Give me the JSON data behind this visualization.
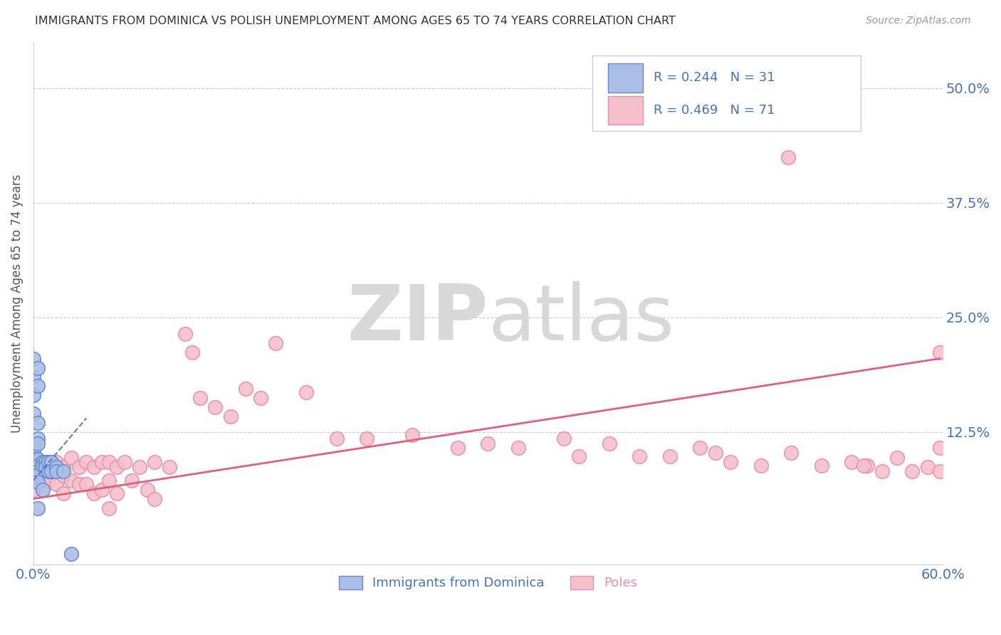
{
  "title": "IMMIGRANTS FROM DOMINICA VS POLISH UNEMPLOYMENT AMONG AGES 65 TO 74 YEARS CORRELATION CHART",
  "source": "Source: ZipAtlas.com",
  "ylabel": "Unemployment Among Ages 65 to 74 years",
  "y_tick_labels": [
    "50.0%",
    "37.5%",
    "25.0%",
    "12.5%"
  ],
  "y_tick_values": [
    0.5,
    0.375,
    0.25,
    0.125
  ],
  "xlim": [
    0.0,
    0.6
  ],
  "ylim": [
    -0.02,
    0.55
  ],
  "background_color": "#ffffff",
  "grid_color": "#cccccc",
  "legend_color1": "#4472c4",
  "legend_color2": "#4472c4",
  "series1_face_color": "#aabfe8",
  "series1_edge_color": "#6888cc",
  "series2_face_color": "#f5c0cc",
  "series2_edge_color": "#e890a8",
  "trendline1_color": "#5580cc",
  "trendline2_color": "#e06080",
  "scatter1_x": [
    0.0,
    0.0,
    0.0,
    0.0,
    0.0,
    0.0,
    0.0,
    0.003,
    0.003,
    0.003,
    0.003,
    0.003,
    0.003,
    0.003,
    0.003,
    0.003,
    0.003,
    0.003,
    0.006,
    0.006,
    0.006,
    0.008,
    0.008,
    0.01,
    0.01,
    0.012,
    0.012,
    0.015,
    0.015,
    0.02,
    0.025
  ],
  "scatter1_y": [
    0.205,
    0.185,
    0.165,
    0.145,
    0.105,
    0.095,
    0.075,
    0.195,
    0.175,
    0.135,
    0.118,
    0.112,
    0.095,
    0.088,
    0.082,
    0.078,
    0.07,
    0.042,
    0.092,
    0.088,
    0.062,
    0.092,
    0.087,
    0.092,
    0.082,
    0.092,
    0.082,
    0.087,
    0.082,
    0.082,
    -0.008
  ],
  "scatter2_x": [
    0.0,
    0.0,
    0.0,
    0.005,
    0.005,
    0.01,
    0.01,
    0.015,
    0.015,
    0.02,
    0.02,
    0.02,
    0.025,
    0.025,
    0.03,
    0.03,
    0.035,
    0.035,
    0.04,
    0.04,
    0.045,
    0.045,
    0.05,
    0.05,
    0.05,
    0.055,
    0.055,
    0.06,
    0.065,
    0.07,
    0.075,
    0.08,
    0.08,
    0.09,
    0.1,
    0.105,
    0.11,
    0.12,
    0.13,
    0.14,
    0.15,
    0.16,
    0.18,
    0.2,
    0.22,
    0.25,
    0.28,
    0.3,
    0.32,
    0.35,
    0.36,
    0.38,
    0.4,
    0.42,
    0.44,
    0.45,
    0.46,
    0.48,
    0.5,
    0.52,
    0.54,
    0.55,
    0.56,
    0.57,
    0.58,
    0.59,
    0.598,
    0.598,
    0.598,
    0.548,
    0.498
  ],
  "scatter2_y": [
    0.082,
    0.072,
    0.062,
    0.092,
    0.072,
    0.087,
    0.072,
    0.092,
    0.068,
    0.087,
    0.077,
    0.058,
    0.097,
    0.072,
    0.087,
    0.068,
    0.092,
    0.068,
    0.087,
    0.058,
    0.092,
    0.062,
    0.092,
    0.072,
    0.042,
    0.087,
    0.058,
    0.092,
    0.072,
    0.087,
    0.062,
    0.092,
    0.052,
    0.087,
    0.232,
    0.212,
    0.162,
    0.152,
    0.142,
    0.172,
    0.162,
    0.222,
    0.168,
    0.118,
    0.118,
    0.122,
    0.108,
    0.112,
    0.108,
    0.118,
    0.098,
    0.112,
    0.098,
    0.098,
    0.108,
    0.102,
    0.092,
    0.088,
    0.102,
    0.088,
    0.092,
    0.088,
    0.082,
    0.097,
    0.082,
    0.087,
    0.212,
    0.108,
    0.082,
    0.088,
    0.425
  ],
  "trendline1_x": [
    0.0,
    0.035
  ],
  "trendline1_y": [
    0.072,
    0.14
  ],
  "trendline2_x": [
    0.0,
    0.598
  ],
  "trendline2_y": [
    0.052,
    0.205
  ]
}
